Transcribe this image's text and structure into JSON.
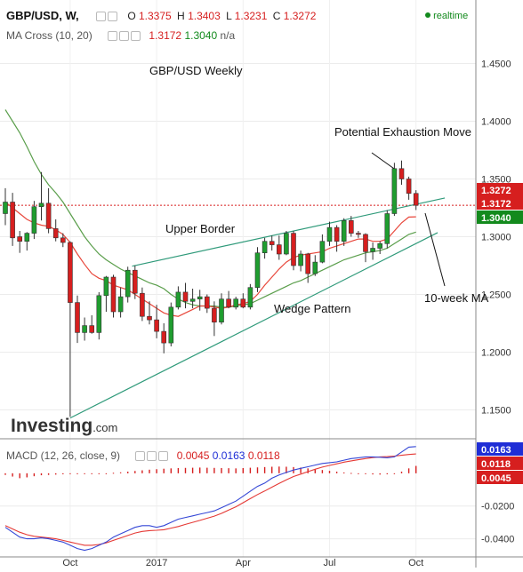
{
  "header": {
    "symbol": "GBP/USD, W,",
    "o_label": "O",
    "o_value": "1.3375",
    "h_label": "H",
    "h_value": "1.3403",
    "l_label": "L",
    "l_value": "1.3231",
    "c_label": "C",
    "c_value": "1.3272",
    "realtime": "realtime",
    "ma_label": "MA Cross (10, 20)",
    "ma_fast": "1.3172",
    "ma_slow": "1.3040",
    "ma_na": "n/a",
    "macd_label": "MACD (12, 26, close, 9)",
    "macd_hist": "0.0045",
    "macd_line": "0.0163",
    "macd_signal": "0.0118"
  },
  "watermark": "Investing",
  "watermark_suffix": ".com",
  "colors": {
    "up": "#1f9d2f",
    "down": "#d61f1f",
    "ma_fast": "#e8473b",
    "ma_slow": "#5a9e4b",
    "trendline": "#2f9a7a",
    "macd_line": "#3447d6",
    "macd_signal": "#e53935",
    "price_tag": "#d61f1f",
    "ma_fast_tag": "#d61f1f",
    "ma_slow_tag": "#138a1d",
    "macd_tag": "#1f2ed6"
  },
  "chart_data": [
    {
      "type": "candlestick",
      "title": "GBP/USD Weekly",
      "x_tick_labels": [
        "Oct",
        "2017",
        "Apr",
        "Jul",
        "Oct"
      ],
      "y_tick_labels": [
        "1.4500",
        "1.4000",
        "1.3500",
        "1.3000",
        "1.2500",
        "1.2000",
        "1.1500"
      ],
      "ylim": [
        1.125,
        1.505
      ],
      "grid": true,
      "price_tags": [
        "1.3272",
        "1.3172",
        "1.3040"
      ],
      "annotations": [
        "Potential Exhaustion Move",
        "Upper Border",
        "Wedge Pattern",
        "10-week MA"
      ],
      "ohlc": [
        [
          1.32,
          1.342,
          1.31,
          1.33
        ],
        [
          1.33,
          1.338,
          1.292,
          1.299
        ],
        [
          1.3,
          1.305,
          1.286,
          1.296
        ],
        [
          1.296,
          1.304,
          1.288,
          1.303
        ],
        [
          1.303,
          1.331,
          1.298,
          1.326
        ],
        [
          1.326,
          1.356,
          1.314,
          1.329
        ],
        [
          1.329,
          1.342,
          1.303,
          1.307
        ],
        [
          1.307,
          1.315,
          1.296,
          1.299
        ],
        [
          1.299,
          1.303,
          1.291,
          1.295
        ],
        [
          1.295,
          1.296,
          1.144,
          1.243
        ],
        [
          1.243,
          1.249,
          1.208,
          1.217
        ],
        [
          1.217,
          1.23,
          1.21,
          1.223
        ],
        [
          1.223,
          1.232,
          1.216,
          1.217
        ],
        [
          1.217,
          1.252,
          1.211,
          1.249
        ],
        [
          1.249,
          1.266,
          1.235,
          1.265
        ],
        [
          1.265,
          1.267,
          1.23,
          1.235
        ],
        [
          1.235,
          1.256,
          1.23,
          1.248
        ],
        [
          1.248,
          1.274,
          1.243,
          1.271
        ],
        [
          1.271,
          1.275,
          1.246,
          1.251
        ],
        [
          1.251,
          1.256,
          1.227,
          1.231
        ],
        [
          1.231,
          1.244,
          1.224,
          1.228
        ],
        [
          1.228,
          1.241,
          1.212,
          1.218
        ],
        [
          1.218,
          1.225,
          1.199,
          1.208
        ],
        [
          1.208,
          1.243,
          1.205,
          1.239
        ],
        [
          1.239,
          1.257,
          1.237,
          1.252
        ],
        [
          1.252,
          1.26,
          1.238,
          1.244
        ],
        [
          1.244,
          1.255,
          1.238,
          1.246
        ],
        [
          1.246,
          1.254,
          1.236,
          1.248
        ],
        [
          1.248,
          1.25,
          1.234,
          1.238
        ],
        [
          1.238,
          1.244,
          1.214,
          1.226
        ],
        [
          1.226,
          1.251,
          1.224,
          1.246
        ],
        [
          1.246,
          1.253,
          1.238,
          1.239
        ],
        [
          1.239,
          1.248,
          1.237,
          1.246
        ],
        [
          1.246,
          1.251,
          1.238,
          1.239
        ],
        [
          1.239,
          1.259,
          1.237,
          1.256
        ],
        [
          1.256,
          1.291,
          1.252,
          1.286
        ],
        [
          1.286,
          1.299,
          1.281,
          1.296
        ],
        [
          1.296,
          1.301,
          1.288,
          1.293
        ],
        [
          1.293,
          1.301,
          1.28,
          1.285
        ],
        [
          1.285,
          1.305,
          1.284,
          1.303
        ],
        [
          1.303,
          1.305,
          1.271,
          1.275
        ],
        [
          1.275,
          1.288,
          1.27,
          1.285
        ],
        [
          1.285,
          1.286,
          1.26,
          1.268
        ],
        [
          1.268,
          1.284,
          1.266,
          1.278
        ],
        [
          1.278,
          1.302,
          1.277,
          1.296
        ],
        [
          1.296,
          1.313,
          1.292,
          1.308
        ],
        [
          1.308,
          1.31,
          1.287,
          1.296
        ],
        [
          1.296,
          1.316,
          1.292,
          1.314
        ],
        [
          1.314,
          1.318,
          1.3,
          1.303
        ],
        [
          1.303,
          1.305,
          1.299,
          1.302
        ],
        [
          1.302,
          1.303,
          1.278,
          1.287
        ],
        [
          1.287,
          1.295,
          1.28,
          1.29
        ],
        [
          1.29,
          1.296,
          1.285,
          1.294
        ],
        [
          1.294,
          1.323,
          1.29,
          1.32
        ],
        [
          1.32,
          1.364,
          1.318,
          1.359
        ],
        [
          1.359,
          1.366,
          1.345,
          1.35
        ],
        [
          1.35,
          1.352,
          1.332,
          1.3375
        ],
        [
          1.3375,
          1.3403,
          1.3231,
          1.3272
        ]
      ],
      "series": [
        {
          "values": [
            1.33,
            1.325,
            1.32,
            1.315,
            1.312,
            1.31,
            1.309,
            1.306,
            1.302,
            1.295,
            1.285,
            1.276,
            1.268,
            1.264,
            1.262,
            1.258,
            1.256,
            1.254,
            1.25,
            1.246,
            1.242,
            1.238,
            1.234,
            1.232,
            1.231,
            1.234,
            1.237,
            1.24,
            1.24,
            1.239,
            1.238,
            1.239,
            1.241,
            1.242,
            1.244,
            1.25,
            1.258,
            1.265,
            1.272,
            1.278,
            1.282,
            1.284,
            1.285,
            1.286,
            1.287,
            1.29,
            1.292,
            1.294,
            1.296,
            1.298,
            1.298,
            1.296,
            1.296,
            1.298,
            1.305,
            1.312,
            1.317,
            1.3172
          ]
        },
        {
          "values": [
            1.41,
            1.4,
            1.39,
            1.378,
            1.365,
            1.354,
            1.345,
            1.338,
            1.33,
            1.32,
            1.31,
            1.3,
            1.292,
            1.285,
            1.28,
            1.276,
            1.272,
            1.269,
            1.266,
            1.263,
            1.26,
            1.258,
            1.255,
            1.25,
            1.246,
            1.243,
            1.241,
            1.24,
            1.24,
            1.24,
            1.239,
            1.239,
            1.24,
            1.241,
            1.242,
            1.245,
            1.248,
            1.251,
            1.254,
            1.257,
            1.26,
            1.262,
            1.265,
            1.268,
            1.271,
            1.274,
            1.277,
            1.28,
            1.282,
            1.284,
            1.286,
            1.287,
            1.288,
            1.29,
            1.294,
            1.298,
            1.302,
            1.304
          ]
        }
      ]
    },
    {
      "type": "bar",
      "title": "MACD (12, 26, close, 9)",
      "y_tick_labels": [
        "-0.0200",
        "-0.0400"
      ],
      "ylim": [
        -0.05,
        0.02
      ],
      "price_tags": [
        "0.0163",
        "0.0118",
        "0.0045"
      ],
      "series": [
        {
          "values": [
            -0.001,
            -0.002,
            -0.003,
            -0.0025,
            -0.0018,
            -0.0012,
            -0.001,
            -0.0008,
            -0.0006,
            -0.0005,
            -0.0004,
            -0.0003,
            -0.0002,
            -0.0001,
            0.0,
            0.0003,
            0.0006,
            0.001,
            0.0014,
            0.0018,
            0.0022,
            0.0025,
            0.0028,
            0.003,
            0.0032,
            0.0033,
            0.0034,
            0.0035,
            0.0034,
            0.0033,
            0.0032,
            0.0031,
            0.003,
            0.0032,
            0.0034,
            0.0036,
            0.0038,
            0.004,
            0.0041,
            0.004,
            0.0038,
            0.0035,
            0.003,
            0.0025,
            0.002,
            0.0015,
            0.001,
            0.0005,
            0.0002,
            -0.0002,
            -0.0005,
            -0.0007,
            -0.0008,
            -0.0006,
            -0.0004,
            0.001,
            0.003,
            0.0045
          ]
        },
        {
          "values": [
            -0.033,
            -0.036,
            -0.039,
            -0.04,
            -0.04,
            -0.0395,
            -0.04,
            -0.041,
            -0.042,
            -0.044,
            -0.046,
            -0.047,
            -0.046,
            -0.044,
            -0.042,
            -0.039,
            -0.037,
            -0.035,
            -0.033,
            -0.032,
            -0.032,
            -0.033,
            -0.032,
            -0.03,
            -0.028,
            -0.027,
            -0.026,
            -0.025,
            -0.024,
            -0.023,
            -0.021,
            -0.019,
            -0.017,
            -0.014,
            -0.011,
            -0.008,
            -0.006,
            -0.003,
            -0.001,
            0.0005,
            0.002,
            0.003,
            0.004,
            0.005,
            0.006,
            0.0065,
            0.007,
            0.008,
            0.009,
            0.0095,
            0.01,
            0.01,
            0.0098,
            0.0095,
            0.01,
            0.013,
            0.016,
            0.0163
          ]
        },
        {
          "values": [
            -0.032,
            -0.034,
            -0.036,
            -0.0375,
            -0.0385,
            -0.039,
            -0.0395,
            -0.04,
            -0.041,
            -0.042,
            -0.043,
            -0.044,
            -0.044,
            -0.0435,
            -0.0425,
            -0.041,
            -0.0395,
            -0.038,
            -0.0365,
            -0.0355,
            -0.035,
            -0.0348,
            -0.0345,
            -0.0335,
            -0.0325,
            -0.0312,
            -0.03,
            -0.0288,
            -0.0275,
            -0.0262,
            -0.0245,
            -0.0225,
            -0.0205,
            -0.018,
            -0.0155,
            -0.013,
            -0.0108,
            -0.0085,
            -0.0062,
            -0.004,
            -0.002,
            -0.0005,
            0.001,
            0.0025,
            0.0038,
            0.0048,
            0.0058,
            0.0068,
            0.0076,
            0.0083,
            0.009,
            0.0096,
            0.01,
            0.0102,
            0.0105,
            0.011,
            0.0115,
            0.0118
          ]
        }
      ]
    }
  ]
}
